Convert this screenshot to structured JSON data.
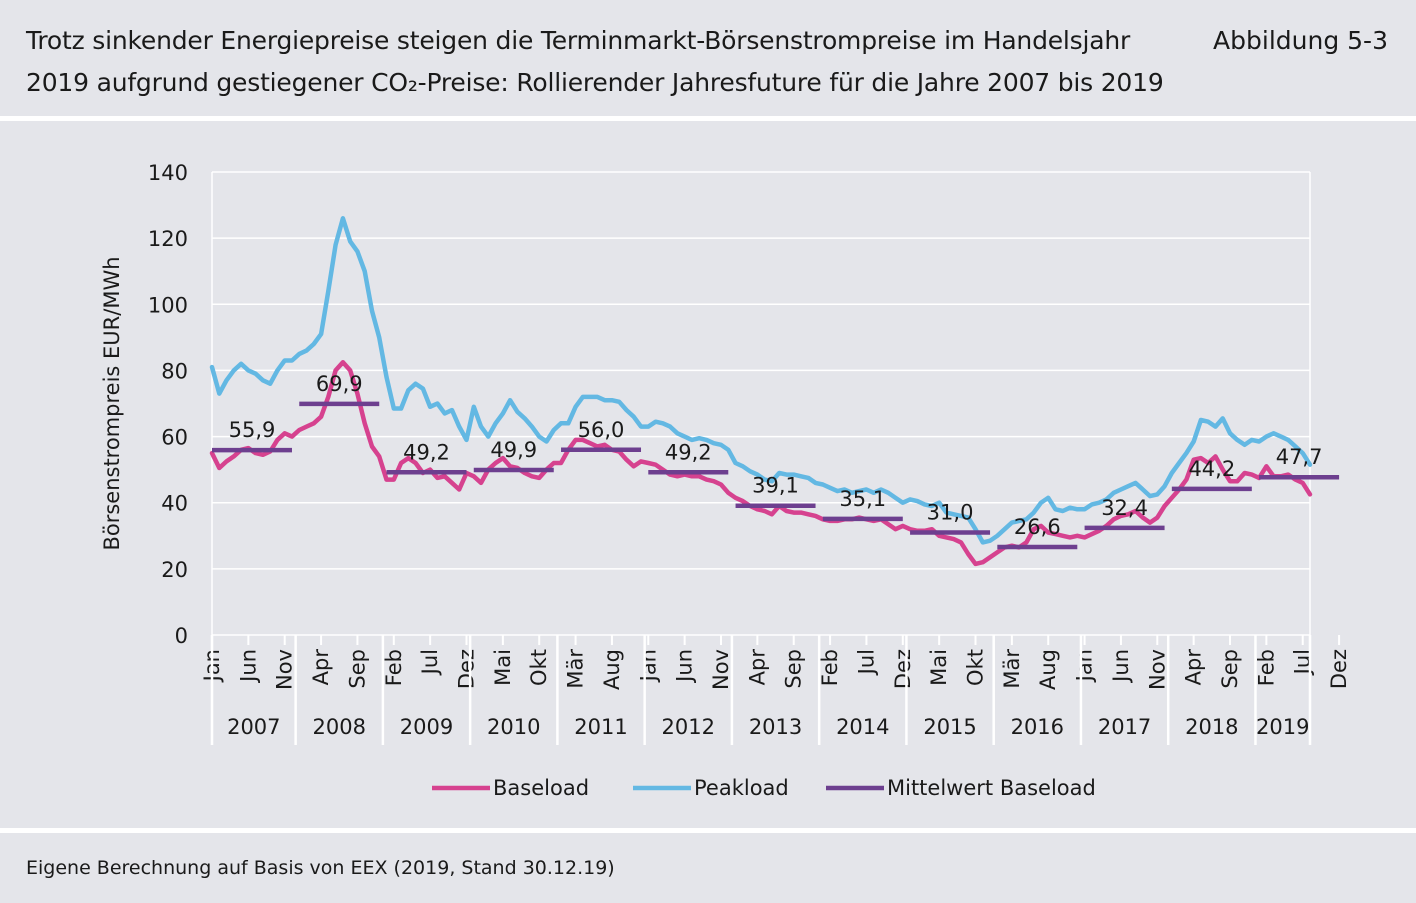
{
  "header": {
    "title": "Trotz sinkender Energiepreise steigen die Terminmarkt-Börsenstrompreise im Handelsjahr 2019 aufgrund gestiegener CO₂-Preise: Rollierender Jahresfuture für die Jahre 2007 bis 2019",
    "figure_number": "Abbildung 5-3"
  },
  "footer": {
    "source": "Eigene Berechnung auf Basis von EEX (2019, Stand 30.12.19)"
  },
  "colors": {
    "baseload": "#d6428f",
    "peakload": "#63b8e3",
    "mean": "#6d3f8f",
    "grid": "#ffffff",
    "background": "#e4e5ea"
  },
  "chart_data": {
    "type": "line",
    "title": "",
    "ylabel": "Börsenstrompreis EUR/MWh",
    "xlabel": "",
    "ylim": [
      0,
      140
    ],
    "yticks": [
      0,
      20,
      40,
      60,
      80,
      100,
      120,
      140
    ],
    "grid": true,
    "legend_position": "bottom",
    "x_month_labels": [
      {
        "label": "Jan",
        "index": 0
      },
      {
        "label": "Jun",
        "index": 5
      },
      {
        "label": "Nov",
        "index": 10
      },
      {
        "label": "Apr",
        "index": 15
      },
      {
        "label": "Sep",
        "index": 20
      },
      {
        "label": "Feb",
        "index": 25
      },
      {
        "label": "Jul",
        "index": 30
      },
      {
        "label": "Dez",
        "index": 35
      },
      {
        "label": "Mai",
        "index": 40
      },
      {
        "label": "Okt",
        "index": 45
      },
      {
        "label": "Mär",
        "index": 50
      },
      {
        "label": "Aug",
        "index": 55
      },
      {
        "label": "Jan",
        "index": 60
      },
      {
        "label": "Jun",
        "index": 65
      },
      {
        "label": "Nov",
        "index": 70
      },
      {
        "label": "Apr",
        "index": 75
      },
      {
        "label": "Sep",
        "index": 80
      },
      {
        "label": "Feb",
        "index": 85
      },
      {
        "label": "Jul",
        "index": 90
      },
      {
        "label": "Dez",
        "index": 95
      },
      {
        "label": "Mai",
        "index": 100
      },
      {
        "label": "Okt",
        "index": 105
      },
      {
        "label": "Mär",
        "index": 110
      },
      {
        "label": "Aug",
        "index": 115
      },
      {
        "label": "Jan",
        "index": 120
      },
      {
        "label": "Jun",
        "index": 125
      },
      {
        "label": "Nov",
        "index": 130
      },
      {
        "label": "Apr",
        "index": 135
      },
      {
        "label": "Sep",
        "index": 140
      },
      {
        "label": "Feb",
        "index": 145
      },
      {
        "label": "Jul",
        "index": 150
      },
      {
        "label": "Dez",
        "index": 155
      }
    ],
    "years": [
      {
        "label": "2007",
        "start": 0,
        "end": 11
      },
      {
        "label": "2008",
        "start": 12,
        "end": 23
      },
      {
        "label": "2009",
        "start": 24,
        "end": 35
      },
      {
        "label": "2010",
        "start": 36,
        "end": 47
      },
      {
        "label": "2011",
        "start": 48,
        "end": 59
      },
      {
        "label": "2012",
        "start": 60,
        "end": 71
      },
      {
        "label": "2013",
        "start": 72,
        "end": 83
      },
      {
        "label": "2014",
        "start": 84,
        "end": 95
      },
      {
        "label": "2015",
        "start": 96,
        "end": 107
      },
      {
        "label": "2016",
        "start": 108,
        "end": 119
      },
      {
        "label": "2017",
        "start": 120,
        "end": 131
      },
      {
        "label": "2018",
        "start": 132,
        "end": 143
      },
      {
        "label": "2019",
        "start": 144,
        "end": 155
      }
    ],
    "series": [
      {
        "name": "Baseload",
        "color_key": "baseload",
        "values": [
          55,
          50.5,
          52.5,
          54,
          56,
          56.5,
          55,
          54.5,
          55.5,
          59,
          61,
          60,
          62,
          63,
          64,
          66,
          72,
          80,
          82.5,
          80,
          73,
          64,
          57,
          54,
          47,
          47,
          52,
          53.5,
          52,
          49,
          50,
          47.5,
          48,
          46,
          44,
          49,
          48,
          46,
          50,
          52,
          53.5,
          51,
          50.5,
          49,
          48,
          47.5,
          50,
          52,
          52,
          56,
          59,
          59,
          58,
          57,
          57.5,
          56,
          55.5,
          53,
          51,
          52.5,
          52,
          51.5,
          50,
          48.5,
          48,
          48.5,
          48,
          48,
          47,
          46.5,
          45.5,
          43,
          41.5,
          40.5,
          39,
          38,
          37.5,
          36.5,
          39,
          37.5,
          37,
          37,
          36.5,
          36,
          35,
          34.5,
          34.5,
          35,
          35,
          35.5,
          35,
          34.5,
          35,
          33.5,
          32,
          33,
          32,
          31.5,
          31.5,
          32,
          30,
          29.5,
          29,
          28,
          24.5,
          21.5,
          22,
          23.5,
          25,
          26.5,
          27,
          26.5,
          28,
          32,
          33,
          31,
          30.5,
          30,
          29.5,
          30,
          29.5,
          30.5,
          31.5,
          33,
          35,
          36,
          36.5,
          37.5,
          35.5,
          34,
          35.5,
          39,
          41.5,
          44,
          47,
          53,
          53.5,
          52,
          54,
          50,
          46.5,
          46.5,
          49,
          48.5,
          47.5,
          51,
          48,
          48,
          48.5,
          47,
          46,
          42.5
        ]
      },
      {
        "name": "Peakload",
        "color_key": "peakload",
        "values": [
          81,
          73,
          77,
          80,
          82,
          80,
          79,
          77,
          76,
          80,
          83,
          83,
          85,
          86,
          88,
          91,
          104,
          118,
          126,
          119,
          116,
          110,
          98,
          90,
          78,
          68.5,
          68.5,
          74,
          76,
          74.5,
          69,
          70,
          67,
          68,
          63,
          59,
          69,
          63,
          60,
          64,
          67,
          71,
          67.5,
          65.5,
          63,
          60,
          58.5,
          62,
          64,
          64,
          69,
          72,
          72,
          72,
          71,
          71,
          70.5,
          68,
          66,
          63,
          63,
          64.5,
          64,
          63,
          61,
          60,
          59,
          59.5,
          59,
          58,
          57.5,
          56,
          52,
          51,
          49.5,
          48.5,
          47,
          46.5,
          49,
          48.5,
          48.5,
          48,
          47.5,
          46,
          45.5,
          44.5,
          43.5,
          44,
          43,
          43.5,
          44,
          43,
          44,
          43,
          41.5,
          40,
          41,
          40.5,
          39.5,
          39,
          40,
          37,
          36.5,
          36,
          35.5,
          32,
          28,
          28.5,
          30,
          32,
          34,
          34.5,
          35,
          37,
          40,
          41.5,
          38,
          37.5,
          38.5,
          38,
          38,
          39.5,
          40,
          41,
          43,
          44,
          45,
          46,
          44,
          42,
          42.5,
          45,
          49,
          52,
          55,
          58.5,
          65,
          64.5,
          63,
          65.5,
          61,
          59,
          57.5,
          59,
          58.5,
          60,
          61,
          60,
          59,
          57,
          55,
          51.5
        ]
      }
    ],
    "mean_series": {
      "name": "Mittelwert Baseload",
      "color_key": "mean",
      "segments": [
        {
          "year": "2007",
          "value": 55.9,
          "label": "55,9"
        },
        {
          "year": "2008",
          "value": 69.9,
          "label": "69,9"
        },
        {
          "year": "2009",
          "value": 49.2,
          "label": "49,2"
        },
        {
          "year": "2010",
          "value": 49.9,
          "label": "49,9"
        },
        {
          "year": "2011",
          "value": 56.0,
          "label": "56,0"
        },
        {
          "year": "2012",
          "value": 49.2,
          "label": "49,2"
        },
        {
          "year": "2013",
          "value": 39.1,
          "label": "39,1"
        },
        {
          "year": "2014",
          "value": 35.1,
          "label": "35,1"
        },
        {
          "year": "2015",
          "value": 31.0,
          "label": "31,0"
        },
        {
          "year": "2016",
          "value": 26.6,
          "label": "26,6"
        },
        {
          "year": "2017",
          "value": 32.4,
          "label": "32,4"
        },
        {
          "year": "2018",
          "value": 44.2,
          "label": "44,2"
        },
        {
          "year": "2019",
          "value": 47.7,
          "label": "47,7"
        }
      ]
    },
    "legend": [
      "Baseload",
      "Peakload",
      "Mittelwert Baseload"
    ]
  }
}
